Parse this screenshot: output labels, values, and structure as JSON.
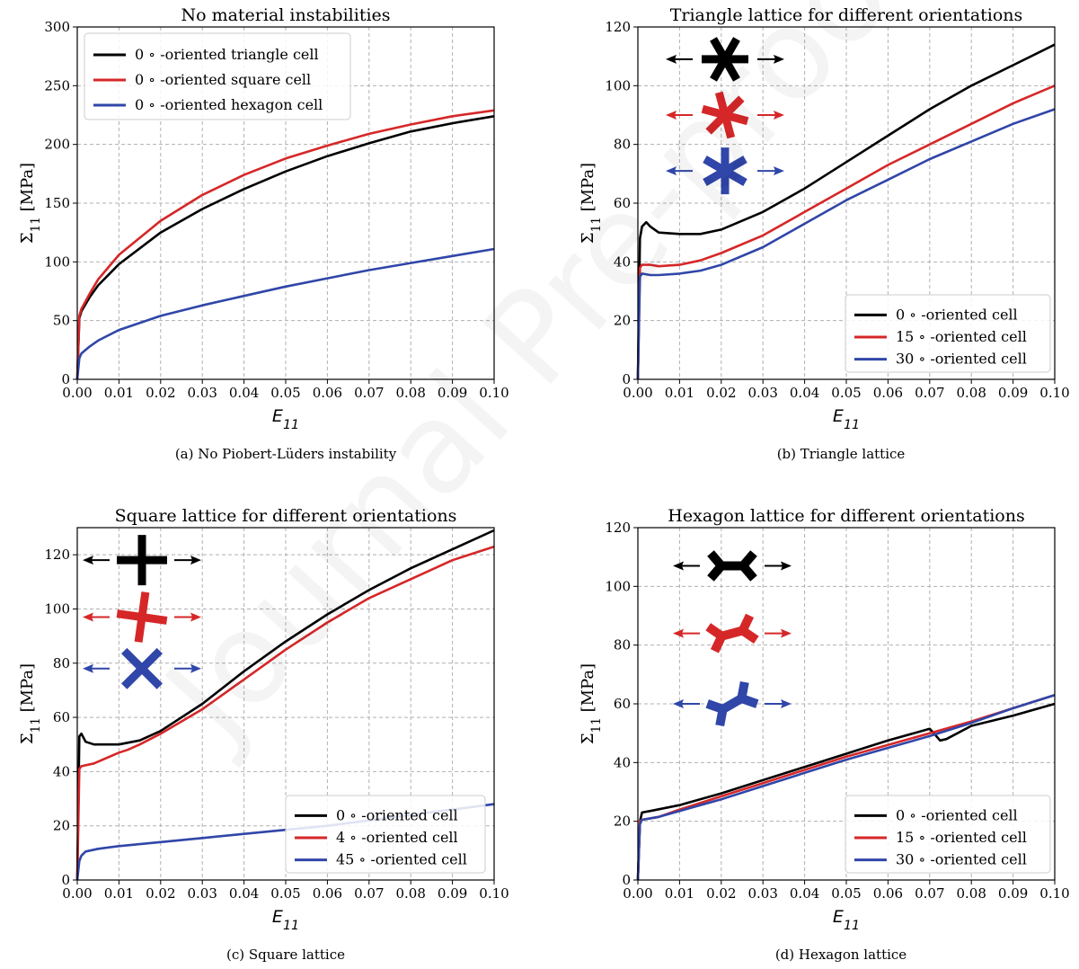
{
  "watermark": "Journal Pre-proofs",
  "chart_data": [
    {
      "type": "line",
      "title": "No material instabilities",
      "caption": "(a) No Piobert-Lüders instability",
      "xlabel": "E_{11}",
      "ylabel": "Σ_{11} [MPa]",
      "xlim": [
        0,
        0.1
      ],
      "ylim": [
        0,
        300
      ],
      "xticks": [
        "0.00",
        "0.01",
        "0.02",
        "0.03",
        "0.04",
        "0.05",
        "0.06",
        "0.07",
        "0.08",
        "0.09",
        "0.10"
      ],
      "yticks": [
        "0",
        "50",
        "100",
        "150",
        "200",
        "250",
        "300"
      ],
      "grid": true,
      "legend_position": "top-left",
      "series": [
        {
          "name": "0 ∘ -oriented triangle cell",
          "color": "#000000",
          "points": [
            [
              0,
              0
            ],
            [
              0.0005,
              52
            ],
            [
              0.001,
              58
            ],
            [
              0.003,
              70
            ],
            [
              0.005,
              80
            ],
            [
              0.01,
              98
            ],
            [
              0.02,
              125
            ],
            [
              0.03,
              145
            ],
            [
              0.04,
              162
            ],
            [
              0.05,
              177
            ],
            [
              0.06,
              190
            ],
            [
              0.07,
              201
            ],
            [
              0.08,
              211
            ],
            [
              0.09,
              218
            ],
            [
              0.1,
              224
            ]
          ]
        },
        {
          "name": "0 ∘ -oriented square cell",
          "color": "#d62728",
          "points": [
            [
              0,
              0
            ],
            [
              0.0005,
              54
            ],
            [
              0.001,
              60
            ],
            [
              0.003,
              73
            ],
            [
              0.005,
              85
            ],
            [
              0.01,
              106
            ],
            [
              0.02,
              135
            ],
            [
              0.03,
              157
            ],
            [
              0.04,
              174
            ],
            [
              0.05,
              188
            ],
            [
              0.06,
              199
            ],
            [
              0.07,
              209
            ],
            [
              0.08,
              217
            ],
            [
              0.09,
              224
            ],
            [
              0.1,
              229
            ]
          ]
        },
        {
          "name": "0 ∘ -oriented hexagon cell",
          "color": "#3046a8",
          "points": [
            [
              0,
              0
            ],
            [
              0.0005,
              18
            ],
            [
              0.001,
              22
            ],
            [
              0.003,
              28
            ],
            [
              0.005,
              33
            ],
            [
              0.01,
              42
            ],
            [
              0.02,
              54
            ],
            [
              0.03,
              63
            ],
            [
              0.04,
              71
            ],
            [
              0.05,
              79
            ],
            [
              0.06,
              86
            ],
            [
              0.07,
              93
            ],
            [
              0.08,
              99
            ],
            [
              0.09,
              105
            ],
            [
              0.1,
              111
            ]
          ]
        }
      ],
      "icons": [
        {
          "shape": "asterisk",
          "color": "#000000",
          "rotation": 0,
          "y": 245
        },
        {
          "shape": "asterisk",
          "color": "#d62728",
          "rotation": 15,
          "y": 220
        },
        {
          "shape": "asterisk",
          "color": "#3046a8",
          "rotation": 30,
          "y": 195
        }
      ]
    },
    {
      "type": "line",
      "title": "Triangle lattice for different orientations",
      "caption": "(b) Triangle lattice",
      "xlabel": "E_{11}",
      "ylabel": "Σ_{11} [MPa]",
      "xlim": [
        0,
        0.1
      ],
      "ylim": [
        0,
        120
      ],
      "xticks": [
        "0.00",
        "0.01",
        "0.02",
        "0.03",
        "0.04",
        "0.05",
        "0.06",
        "0.07",
        "0.08",
        "0.09",
        "0.10"
      ],
      "yticks": [
        "0",
        "20",
        "40",
        "60",
        "80",
        "100",
        "120"
      ],
      "grid": true,
      "legend_position": "bottom-right",
      "icons_shown": true,
      "series": [
        {
          "name": "0 ∘ -oriented cell",
          "color": "#000000",
          "points": [
            [
              0,
              0
            ],
            [
              0.0005,
              48
            ],
            [
              0.001,
              52
            ],
            [
              0.002,
              53.5
            ],
            [
              0.003,
              52
            ],
            [
              0.005,
              50
            ],
            [
              0.01,
              49.5
            ],
            [
              0.015,
              49.5
            ],
            [
              0.02,
              51
            ],
            [
              0.03,
              57
            ],
            [
              0.04,
              65
            ],
            [
              0.05,
              74
            ],
            [
              0.06,
              83
            ],
            [
              0.07,
              92
            ],
            [
              0.08,
              100
            ],
            [
              0.09,
              107
            ],
            [
              0.1,
              114
            ]
          ]
        },
        {
          "name": "15 ∘ -oriented cell",
          "color": "#d62728",
          "points": [
            [
              0,
              0
            ],
            [
              0.0005,
              38
            ],
            [
              0.001,
              39
            ],
            [
              0.003,
              39
            ],
            [
              0.005,
              38.5
            ],
            [
              0.01,
              39
            ],
            [
              0.015,
              40.5
            ],
            [
              0.02,
              43
            ],
            [
              0.03,
              49
            ],
            [
              0.04,
              57
            ],
            [
              0.05,
              65
            ],
            [
              0.06,
              73
            ],
            [
              0.07,
              80
            ],
            [
              0.08,
              87
            ],
            [
              0.09,
              94
            ],
            [
              0.1,
              100
            ]
          ]
        },
        {
          "name": "30 ∘ -oriented cell",
          "color": "#3046a8",
          "points": [
            [
              0,
              0
            ],
            [
              0.0005,
              35
            ],
            [
              0.001,
              36
            ],
            [
              0.003,
              35.5
            ],
            [
              0.005,
              35.5
            ],
            [
              0.01,
              36
            ],
            [
              0.015,
              37
            ],
            [
              0.02,
              39
            ],
            [
              0.03,
              45
            ],
            [
              0.04,
              53
            ],
            [
              0.05,
              61
            ],
            [
              0.06,
              68
            ],
            [
              0.07,
              75
            ],
            [
              0.08,
              81
            ],
            [
              0.09,
              87
            ],
            [
              0.1,
              92
            ]
          ]
        }
      ],
      "icons": [
        {
          "shape": "asterisk",
          "color": "#000000",
          "rotation": 0,
          "y": 109
        },
        {
          "shape": "asterisk",
          "color": "#d62728",
          "rotation": 15,
          "y": 90
        },
        {
          "shape": "asterisk",
          "color": "#3046a8",
          "rotation": 30,
          "y": 71
        }
      ]
    },
    {
      "type": "line",
      "title": "Square lattice for different orientations",
      "caption": "(c) Square lattice",
      "xlabel": "E_{11}",
      "ylabel": "Σ_{11} [MPa]",
      "xlim": [
        0,
        0.1
      ],
      "ylim": [
        0,
        130
      ],
      "xticks": [
        "0.00",
        "0.01",
        "0.02",
        "0.03",
        "0.04",
        "0.05",
        "0.06",
        "0.07",
        "0.08",
        "0.09",
        "0.10"
      ],
      "yticks": [
        "0",
        "20",
        "40",
        "60",
        "80",
        "100",
        "120"
      ],
      "grid": true,
      "legend_position": "bottom-right",
      "icons_shown": true,
      "series": [
        {
          "name": "0 ∘ -oriented cell",
          "color": "#000000",
          "points": [
            [
              0,
              0
            ],
            [
              0.0005,
              53
            ],
            [
              0.001,
              54
            ],
            [
              0.002,
              51
            ],
            [
              0.004,
              50
            ],
            [
              0.01,
              50
            ],
            [
              0.015,
              51.5
            ],
            [
              0.02,
              55
            ],
            [
              0.03,
              65
            ],
            [
              0.04,
              77
            ],
            [
              0.05,
              88
            ],
            [
              0.06,
              98
            ],
            [
              0.07,
              107
            ],
            [
              0.08,
              115
            ],
            [
              0.09,
              122
            ],
            [
              0.1,
              129
            ]
          ]
        },
        {
          "name": "4 ∘ -oriented cell",
          "color": "#d62728",
          "points": [
            [
              0,
              0
            ],
            [
              0.0005,
              41
            ],
            [
              0.001,
              42
            ],
            [
              0.004,
              43
            ],
            [
              0.01,
              47
            ],
            [
              0.012,
              48
            ],
            [
              0.015,
              50
            ],
            [
              0.02,
              54
            ],
            [
              0.03,
              63
            ],
            [
              0.04,
              74
            ],
            [
              0.05,
              85
            ],
            [
              0.06,
              95
            ],
            [
              0.07,
              104
            ],
            [
              0.08,
              111
            ],
            [
              0.09,
              118
            ],
            [
              0.1,
              123
            ]
          ]
        },
        {
          "name": "45 ∘ -oriented cell",
          "color": "#3046a8",
          "points": [
            [
              0,
              0
            ],
            [
              0.0005,
              7
            ],
            [
              0.001,
              9
            ],
            [
              0.002,
              10.5
            ],
            [
              0.005,
              11.5
            ],
            [
              0.01,
              12.5
            ],
            [
              0.02,
              14
            ],
            [
              0.03,
              15.5
            ],
            [
              0.04,
              17
            ],
            [
              0.05,
              18.5
            ],
            [
              0.06,
              20
            ],
            [
              0.07,
              22
            ],
            [
              0.08,
              24
            ],
            [
              0.09,
              26
            ],
            [
              0.1,
              28
            ]
          ]
        }
      ],
      "icons": [
        {
          "shape": "cross",
          "color": "#000000",
          "rotation": 0,
          "y": 118
        },
        {
          "shape": "cross",
          "color": "#d62728",
          "rotation": 8,
          "y": 97
        },
        {
          "shape": "cross",
          "color": "#3046a8",
          "rotation": 45,
          "y": 78
        }
      ]
    },
    {
      "type": "line",
      "title": "Hexagon lattice for different orientations",
      "caption": "(d) Hexagon lattice",
      "xlabel": "E_{11}",
      "ylabel": "Σ_{11} [MPa]",
      "xlim": [
        0,
        0.1
      ],
      "ylim": [
        0,
        120
      ],
      "xticks": [
        "0.00",
        "0.01",
        "0.02",
        "0.03",
        "0.04",
        "0.05",
        "0.06",
        "0.07",
        "0.08",
        "0.09",
        "0.10"
      ],
      "yticks": [
        "0",
        "20",
        "40",
        "60",
        "80",
        "100",
        "120"
      ],
      "grid": true,
      "legend_position": "bottom-right",
      "icons_shown": true,
      "series": [
        {
          "name": "0 ∘ -oriented cell",
          "color": "#000000",
          "points": [
            [
              0,
              0
            ],
            [
              0.0005,
              20
            ],
            [
              0.001,
              23
            ],
            [
              0.003,
              23.5
            ],
            [
              0.01,
              25.5
            ],
            [
              0.02,
              29.5
            ],
            [
              0.03,
              34
            ],
            [
              0.04,
              38.5
            ],
            [
              0.05,
              43
            ],
            [
              0.06,
              47.5
            ],
            [
              0.07,
              51.5
            ],
            [
              0.071,
              50
            ],
            [
              0.0725,
              47.5
            ],
            [
              0.074,
              48
            ],
            [
              0.08,
              52.5
            ],
            [
              0.09,
              56
            ],
            [
              0.1,
              60
            ]
          ]
        },
        {
          "name": "15 ∘ -oriented cell",
          "color": "#d62728",
          "points": [
            [
              0,
              0
            ],
            [
              0.0005,
              20
            ],
            [
              0.001,
              20.5
            ],
            [
              0.005,
              21.5
            ],
            [
              0.01,
              24
            ],
            [
              0.02,
              28.5
            ],
            [
              0.03,
              33
            ],
            [
              0.04,
              37.5
            ],
            [
              0.05,
              42
            ],
            [
              0.06,
              46
            ],
            [
              0.07,
              50
            ],
            [
              0.08,
              54
            ],
            [
              0.09,
              58.5
            ],
            [
              0.1,
              63
            ]
          ]
        },
        {
          "name": "30 ∘ -oriented cell",
          "color": "#3046a8",
          "points": [
            [
              0,
              0
            ],
            [
              0.0005,
              19
            ],
            [
              0.001,
              20.5
            ],
            [
              0.005,
              21.5
            ],
            [
              0.01,
              23.5
            ],
            [
              0.02,
              27.5
            ],
            [
              0.03,
              32
            ],
            [
              0.04,
              36.5
            ],
            [
              0.05,
              41
            ],
            [
              0.06,
              45
            ],
            [
              0.07,
              49
            ],
            [
              0.08,
              53.5
            ],
            [
              0.09,
              58.5
            ],
            [
              0.1,
              63
            ]
          ]
        }
      ],
      "icons": [
        {
          "shape": "hexcell",
          "color": "#000000",
          "rotation": 0,
          "y": 107
        },
        {
          "shape": "hexcell",
          "color": "#d62728",
          "rotation": -15,
          "y": 84
        },
        {
          "shape": "hexcell",
          "color": "#3046a8",
          "rotation": -30,
          "y": 60
        }
      ]
    }
  ]
}
